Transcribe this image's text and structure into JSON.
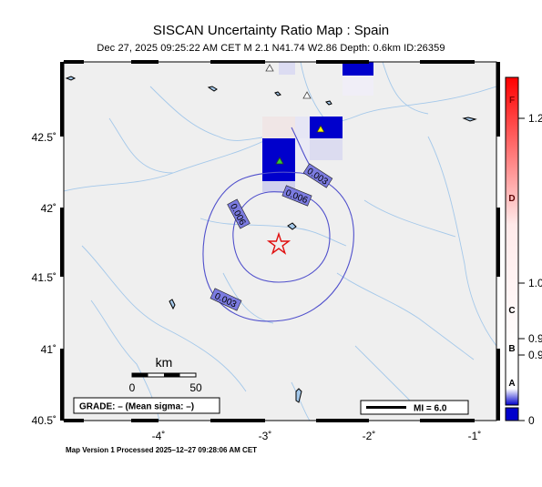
{
  "header": {
    "title": "SISCAN Uncertainty Ratio Map : Spain",
    "subtitle": "Dec 27, 2025 09:25:22 AM CET   M 2.1   N41.74 W2.86   Depth: 0.6km   ID:26359"
  },
  "axes": {
    "x_ticks": [
      "-4˚",
      "-3˚",
      "-2˚",
      "-1˚"
    ],
    "y_ticks": [
      "42.5˚",
      "42˚",
      "41.5˚",
      "41˚",
      "40.5˚"
    ]
  },
  "epicenter": {
    "lat": 41.74,
    "lon": -2.86
  },
  "contours": [
    {
      "label": "0.003"
    },
    {
      "label": "0.006"
    },
    {
      "label": "0.006"
    },
    {
      "label": "0.003"
    }
  ],
  "scale_bar": {
    "unit": "km",
    "label_start": "0",
    "label_end": "50"
  },
  "grade_box": "GRADE: – (Mean sigma: –)",
  "legend_box": "MI = 6.0",
  "colorbar": {
    "colors": {
      "low": "#ffffff",
      "high": "#ff0000",
      "zero": "#0000cc"
    },
    "grades": [
      "F",
      "D",
      "C",
      "B",
      "A"
    ],
    "values": [
      "1.2",
      "1.0",
      "0.9",
      "0.9",
      "0"
    ]
  },
  "footer": "Map Version 1 Processed 2025–12–27 09:28:06 AM CET"
}
